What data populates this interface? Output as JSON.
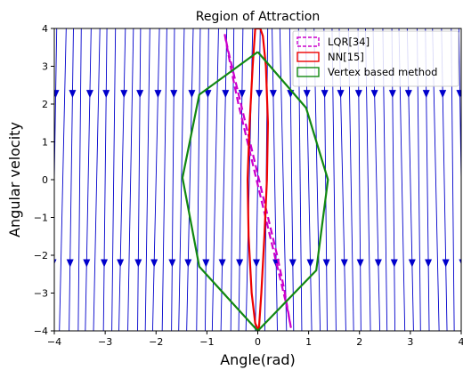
{
  "chart_data": {
    "type": "line",
    "title": "Region of Attraction",
    "xlabel": "Angle(rad)",
    "ylabel": "Angular velocity",
    "xlim": [
      -4,
      4
    ],
    "ylim": [
      -4,
      4
    ],
    "xticks": [
      -4,
      -3,
      -2,
      -1,
      0,
      1,
      2,
      3,
      4
    ],
    "yticks": [
      -4,
      -3,
      -2,
      -1,
      0,
      1,
      2,
      3,
      4
    ],
    "grid": false,
    "legend_position": "top-right",
    "background": {
      "type": "streamplot",
      "color": "#0000cc",
      "description": "phase-portrait streamlines with arrowheads"
    },
    "series": [
      {
        "name": "LQR[34]",
        "style": "dashed",
        "color": "#cc00cc",
        "x": [
          -0.65,
          -0.52,
          -0.38,
          -0.22,
          -0.06,
          0.1,
          0.26,
          0.42,
          0.58,
          0.65,
          0.52,
          0.38,
          0.22,
          0.06,
          -0.1,
          -0.26,
          -0.42,
          -0.58,
          -0.65
        ],
        "y": [
          3.85,
          2.9,
          2.0,
          1.1,
          0.2,
          -0.7,
          -1.6,
          -2.5,
          -3.4,
          -3.9,
          -2.9,
          -2.0,
          -1.1,
          -0.2,
          0.7,
          1.6,
          2.5,
          3.4,
          3.85
        ]
      },
      {
        "name": "NN[15]",
        "style": "solid",
        "color": "#ee0000",
        "x": [
          -0.05,
          -0.1,
          -0.16,
          -0.2,
          -0.18,
          -0.12,
          -0.05,
          0.02,
          0.07,
          0.13,
          0.18,
          0.2,
          0.16,
          0.1,
          0.05,
          0.02,
          -0.05
        ],
        "y": [
          4.0,
          3.0,
          1.5,
          0.0,
          -1.5,
          -3.0,
          -3.8,
          -4.0,
          -3.0,
          -1.5,
          0.0,
          1.5,
          3.0,
          3.8,
          4.0,
          4.0,
          4.0
        ]
      },
      {
        "name": "Vertex based method",
        "style": "solid",
        "color": "#118811",
        "x": [
          0.0,
          0.95,
          1.38,
          1.15,
          0.0,
          -1.15,
          -1.48,
          -1.15,
          0.0
        ],
        "y": [
          3.38,
          1.9,
          0.0,
          -2.4,
          -4.0,
          -2.3,
          0.05,
          2.25,
          3.38
        ]
      }
    ]
  }
}
